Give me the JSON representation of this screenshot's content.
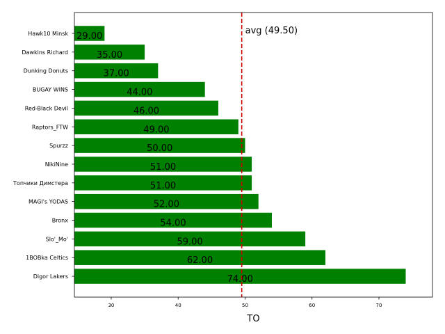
{
  "chart_data": {
    "type": "bar",
    "orientation": "horizontal",
    "categories": [
      "Hawk10 Minsk",
      "Dawkins Richard",
      "Dunking Donuts",
      "BUGAY WINS",
      "Red-Black Devil",
      "Raptors_FTW",
      "Spurzz",
      "NikiNine",
      "Топчики Димстера",
      "MAGI's YODAS",
      "Bronx",
      "Slo'_Mo'",
      "1BOBka Celtics",
      "Digor Lakers"
    ],
    "values": [
      29,
      35,
      37,
      44,
      46,
      49,
      50,
      51,
      51,
      52,
      54,
      59,
      62,
      74
    ],
    "value_labels": [
      "29.00",
      "35.00",
      "37.00",
      "44.00",
      "46.00",
      "49.00",
      "50.00",
      "51.00",
      "51.00",
      "52.00",
      "54.00",
      "59.00",
      "62.00",
      "74.00"
    ],
    "xlabel": "TO",
    "ylabel": "",
    "title": "",
    "xlim": [
      24.5,
      78
    ],
    "xticks": [
      30,
      40,
      50,
      60,
      70
    ],
    "xtick_labels": [
      "30",
      "40",
      "50",
      "60",
      "70"
    ],
    "average": 49.5,
    "average_label": "avg (49.50)",
    "bar_color": "#008000",
    "average_color": "#cc0000",
    "grid": false
  }
}
